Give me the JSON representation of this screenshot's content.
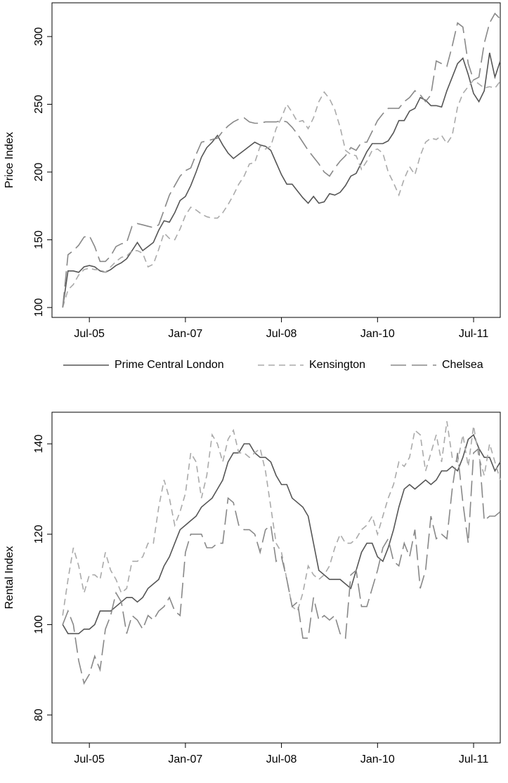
{
  "chart_data": [
    {
      "type": "line",
      "ylabel": "Price Index",
      "x": [
        "2005-02",
        "2005-03",
        "2005-04",
        "2005-05",
        "2005-06",
        "2005-07",
        "2005-08",
        "2005-09",
        "2005-10",
        "2005-11",
        "2005-12",
        "2006-01",
        "2006-02",
        "2006-03",
        "2006-04",
        "2006-05",
        "2006-06",
        "2006-07",
        "2006-08",
        "2006-09",
        "2006-10",
        "2006-11",
        "2006-12",
        "2007-01",
        "2007-02",
        "2007-03",
        "2007-04",
        "2007-05",
        "2007-06",
        "2007-07",
        "2007-08",
        "2007-09",
        "2007-10",
        "2007-11",
        "2007-12",
        "2008-01",
        "2008-02",
        "2008-03",
        "2008-04",
        "2008-05",
        "2008-06",
        "2008-07",
        "2008-08",
        "2008-09",
        "2008-10",
        "2008-11",
        "2008-12",
        "2009-01",
        "2009-02",
        "2009-03",
        "2009-04",
        "2009-05",
        "2009-06",
        "2009-07",
        "2009-08",
        "2009-09",
        "2009-10",
        "2009-11",
        "2009-12",
        "2010-01",
        "2010-02",
        "2010-03",
        "2010-04",
        "2010-05",
        "2010-06",
        "2010-07",
        "2010-08",
        "2010-09",
        "2010-10",
        "2010-11",
        "2010-12",
        "2011-01",
        "2011-02",
        "2011-03",
        "2011-04",
        "2011-05",
        "2011-06",
        "2011-07",
        "2011-08",
        "2011-09",
        "2011-10",
        "2011-11",
        "2011-12"
      ],
      "series": [
        {
          "name": "Prime Central London",
          "color": "#555555",
          "dash": "solid",
          "values": [
            100,
            127,
            127,
            126,
            130,
            131,
            130,
            127,
            126,
            128,
            131,
            133,
            136,
            142,
            148,
            142,
            145,
            148,
            157,
            164,
            163,
            170,
            179,
            182,
            190,
            200,
            211,
            218,
            222,
            227,
            220,
            214,
            210,
            213,
            216,
            219,
            222,
            220,
            219,
            216,
            207,
            198,
            191,
            191,
            186,
            181,
            177,
            182,
            177,
            178,
            184,
            183,
            185,
            190,
            197,
            199,
            207,
            215,
            221,
            221,
            221,
            223,
            229,
            238,
            238,
            245,
            247,
            255,
            253,
            249,
            249,
            248,
            260,
            270,
            280,
            284,
            272,
            258,
            252,
            260,
            288,
            270,
            282
          ]
        },
        {
          "name": "Kensington",
          "color": "#aaaaaa",
          "dash": "short",
          "values": [
            100,
            113,
            117,
            124,
            128,
            129,
            128,
            128,
            126,
            130,
            134,
            137,
            138,
            142,
            142,
            140,
            130,
            132,
            143,
            155,
            151,
            150,
            158,
            168,
            174,
            172,
            169,
            167,
            166,
            166,
            170,
            176,
            183,
            191,
            197,
            206,
            207,
            219,
            217,
            219,
            232,
            240,
            250,
            244,
            237,
            238,
            232,
            240,
            252,
            259,
            254,
            246,
            233,
            216,
            213,
            212,
            202,
            208,
            216,
            217,
            214,
            200,
            192,
            183,
            195,
            204,
            198,
            212,
            222,
            225,
            224,
            227,
            221,
            227,
            248,
            258,
            263,
            268,
            265,
            262,
            263,
            262,
            267
          ]
        },
        {
          "name": "Chelsea",
          "color": "#888888",
          "dash": "long",
          "values": [
            100,
            139,
            142,
            146,
            152,
            153,
            145,
            134,
            134,
            138,
            145,
            147,
            148,
            160,
            162,
            161,
            160,
            159,
            161,
            172,
            183,
            190,
            197,
            201,
            203,
            213,
            222,
            223,
            224,
            225,
            230,
            234,
            237,
            239,
            240,
            237,
            236,
            236,
            237,
            237,
            237,
            238,
            237,
            233,
            228,
            222,
            216,
            211,
            206,
            200,
            197,
            203,
            208,
            212,
            218,
            216,
            222,
            222,
            230,
            238,
            243,
            247,
            247,
            247,
            252,
            255,
            260,
            257,
            252,
            257,
            282,
            280,
            278,
            293,
            310,
            307,
            280,
            268,
            270,
            295,
            310,
            317,
            313
          ]
        }
      ],
      "xlim": [
        "2004-12",
        "2011-12"
      ],
      "xticks": [
        {
          "value": "2005-07",
          "label": "Jul-05"
        },
        {
          "value": "2007-01",
          "label": "Jan-07"
        },
        {
          "value": "2008-07",
          "label": "Jul-08"
        },
        {
          "value": "2010-01",
          "label": "Jan-10"
        },
        {
          "value": "2011-07",
          "label": "Jul-11"
        }
      ],
      "ylim": [
        92.7,
        324.9
      ],
      "yticks": [
        100,
        150,
        200,
        250,
        300
      ],
      "grid": false,
      "legend": "bottom"
    },
    {
      "type": "line",
      "ylabel": "Rental Index",
      "x": [
        "2005-02",
        "2005-03",
        "2005-04",
        "2005-05",
        "2005-06",
        "2005-07",
        "2005-08",
        "2005-09",
        "2005-10",
        "2005-11",
        "2005-12",
        "2006-01",
        "2006-02",
        "2006-03",
        "2006-04",
        "2006-05",
        "2006-06",
        "2006-07",
        "2006-08",
        "2006-09",
        "2006-10",
        "2006-11",
        "2006-12",
        "2007-01",
        "2007-02",
        "2007-03",
        "2007-04",
        "2007-05",
        "2007-06",
        "2007-07",
        "2007-08",
        "2007-09",
        "2007-10",
        "2007-11",
        "2007-12",
        "2008-01",
        "2008-02",
        "2008-03",
        "2008-04",
        "2008-05",
        "2008-06",
        "2008-07",
        "2008-08",
        "2008-09",
        "2008-10",
        "2008-11",
        "2008-12",
        "2009-01",
        "2009-02",
        "2009-03",
        "2009-04",
        "2009-05",
        "2009-06",
        "2009-07",
        "2009-08",
        "2009-09",
        "2009-10",
        "2009-11",
        "2009-12",
        "2010-01",
        "2010-02",
        "2010-03",
        "2010-04",
        "2010-05",
        "2010-06",
        "2010-07",
        "2010-08",
        "2010-09",
        "2010-10",
        "2010-11",
        "2010-12",
        "2011-01",
        "2011-02",
        "2011-03",
        "2011-04",
        "2011-05",
        "2011-06",
        "2011-07",
        "2011-08",
        "2011-09",
        "2011-10",
        "2011-11",
        "2011-12"
      ],
      "series": [
        {
          "name": "Prime Central London",
          "color": "#555555",
          "dash": "solid",
          "values": [
            100,
            98,
            98,
            98,
            99,
            99,
            100,
            103,
            103,
            103,
            104,
            105,
            106,
            106,
            105,
            106,
            108,
            109,
            110,
            113,
            115,
            118,
            121,
            122,
            123,
            124,
            126,
            127,
            128,
            130,
            132,
            136,
            138,
            138,
            140,
            140,
            138,
            137,
            137,
            136,
            133,
            131,
            131,
            128,
            127,
            126,
            124,
            118,
            112,
            111,
            110,
            110,
            110,
            109,
            108,
            112,
            116,
            118,
            118,
            115,
            114,
            117,
            121,
            126,
            130,
            131,
            130,
            131,
            132,
            131,
            132,
            134,
            134,
            135,
            134,
            137,
            141,
            142,
            139,
            137,
            137,
            134,
            136
          ]
        },
        {
          "name": "Kensington",
          "color": "#aaaaaa",
          "dash": "short",
          "values": [
            102,
            110,
            117,
            113,
            107,
            111,
            111,
            110,
            116,
            112,
            110,
            107,
            108,
            114,
            114,
            115,
            118,
            118,
            126,
            132,
            128,
            122,
            125,
            129,
            138,
            136,
            128,
            133,
            142,
            140,
            136,
            141,
            143,
            138,
            138,
            137,
            138,
            139,
            134,
            126,
            118,
            116,
            110,
            104,
            103,
            107,
            113,
            111,
            110,
            111,
            113,
            117,
            120,
            118,
            118,
            119,
            121,
            122,
            124,
            120,
            124,
            128,
            131,
            136,
            135,
            137,
            143,
            142,
            134,
            138,
            142,
            136,
            145,
            137,
            136,
            142,
            135,
            144,
            137,
            133,
            140,
            136,
            132
          ]
        },
        {
          "name": "Chelsea",
          "color": "#888888",
          "dash": "long",
          "values": [
            100,
            103,
            100,
            92,
            87,
            89,
            93,
            90,
            99,
            102,
            107,
            105,
            98,
            102,
            101,
            99,
            102,
            101,
            103,
            104,
            106,
            103,
            102,
            116,
            120,
            120,
            120,
            117,
            117,
            118,
            118,
            128,
            127,
            122,
            121,
            121,
            120,
            116,
            121,
            122,
            114,
            115,
            110,
            104,
            105,
            97,
            97,
            106,
            101,
            102,
            101,
            102,
            98,
            97,
            111,
            112,
            104,
            104,
            108,
            112,
            117,
            119,
            114,
            113,
            118,
            115,
            121,
            108,
            112,
            124,
            119,
            120,
            119,
            130,
            138,
            127,
            118,
            138,
            139,
            123,
            124,
            124,
            125
          ]
        }
      ],
      "xlim": [
        "2004-12",
        "2011-12"
      ],
      "xticks": [
        {
          "value": "2005-07",
          "label": "Jul-05"
        },
        {
          "value": "2007-01",
          "label": "Jan-07"
        },
        {
          "value": "2008-07",
          "label": "Jul-08"
        },
        {
          "value": "2010-01",
          "label": "Jan-10"
        },
        {
          "value": "2011-07",
          "label": "Jul-11"
        }
      ],
      "ylim": [
        73.8,
        147.0
      ],
      "yticks": [
        80,
        100,
        120,
        140
      ],
      "grid": false,
      "legend": "bottom"
    }
  ]
}
